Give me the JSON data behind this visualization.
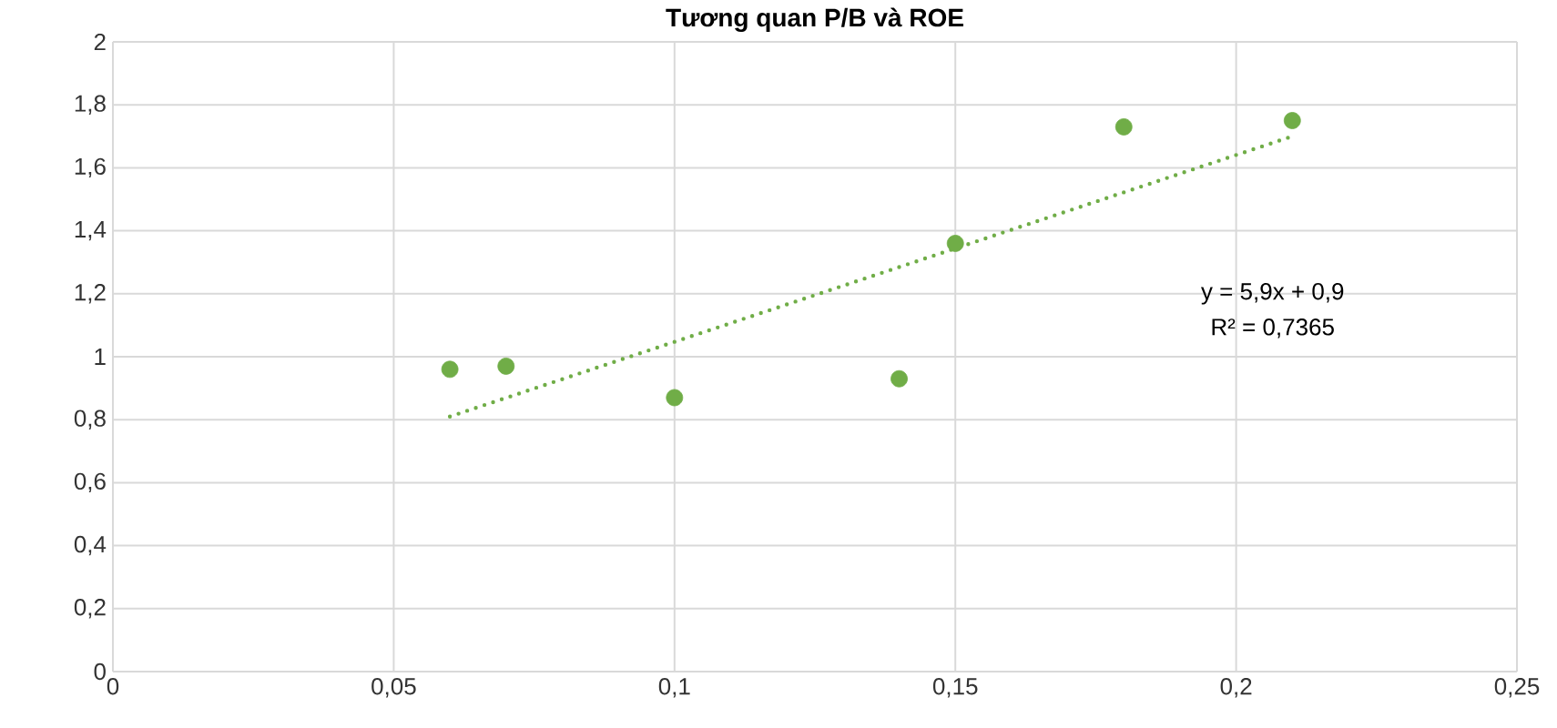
{
  "chart_data": {
    "type": "scatter",
    "title": "Tương quan P/B và ROE",
    "x": [
      0.06,
      0.07,
      0.1,
      0.14,
      0.15,
      0.18,
      0.21
    ],
    "series": [
      {
        "color": "#70ad47",
        "marker": "circle",
        "values": [
          0.96,
          0.97,
          0.87,
          0.93,
          1.36,
          1.73,
          1.75
        ]
      },
      {
        "type": "line",
        "color": "#70ad47",
        "marker": "none",
        "line_style": "dotted",
        "x": [
          0.06,
          0.21
        ],
        "values": [
          0.81,
          1.7
        ]
      }
    ],
    "annotations": [
      "y = 5,9x + 0,9",
      "R² = 0,7365"
    ],
    "xlim": [
      0,
      0.25
    ],
    "xticks": [
      0,
      {
        "value": 0.05,
        "label": "0,05"
      },
      {
        "value": 0.1,
        "label": "0,1"
      },
      {
        "value": 0.15,
        "label": "0,15"
      },
      {
        "value": 0.2,
        "label": "0,2"
      },
      {
        "value": 0.25,
        "label": "0,25"
      }
    ],
    "ylim": [
      0,
      2
    ],
    "yticks": [
      0,
      {
        "value": 0.2,
        "label": "0,2"
      },
      {
        "value": 0.4,
        "label": "0,4"
      },
      {
        "value": 0.6,
        "label": "0,6"
      },
      {
        "value": 0.8,
        "label": "0,8"
      },
      1,
      {
        "value": 1.2,
        "label": "1,2"
      },
      {
        "value": 1.4,
        "label": "1,4"
      },
      {
        "value": 1.6,
        "label": "1,6"
      },
      {
        "value": 1.8,
        "label": "1,8"
      },
      2
    ],
    "grid": true
  }
}
